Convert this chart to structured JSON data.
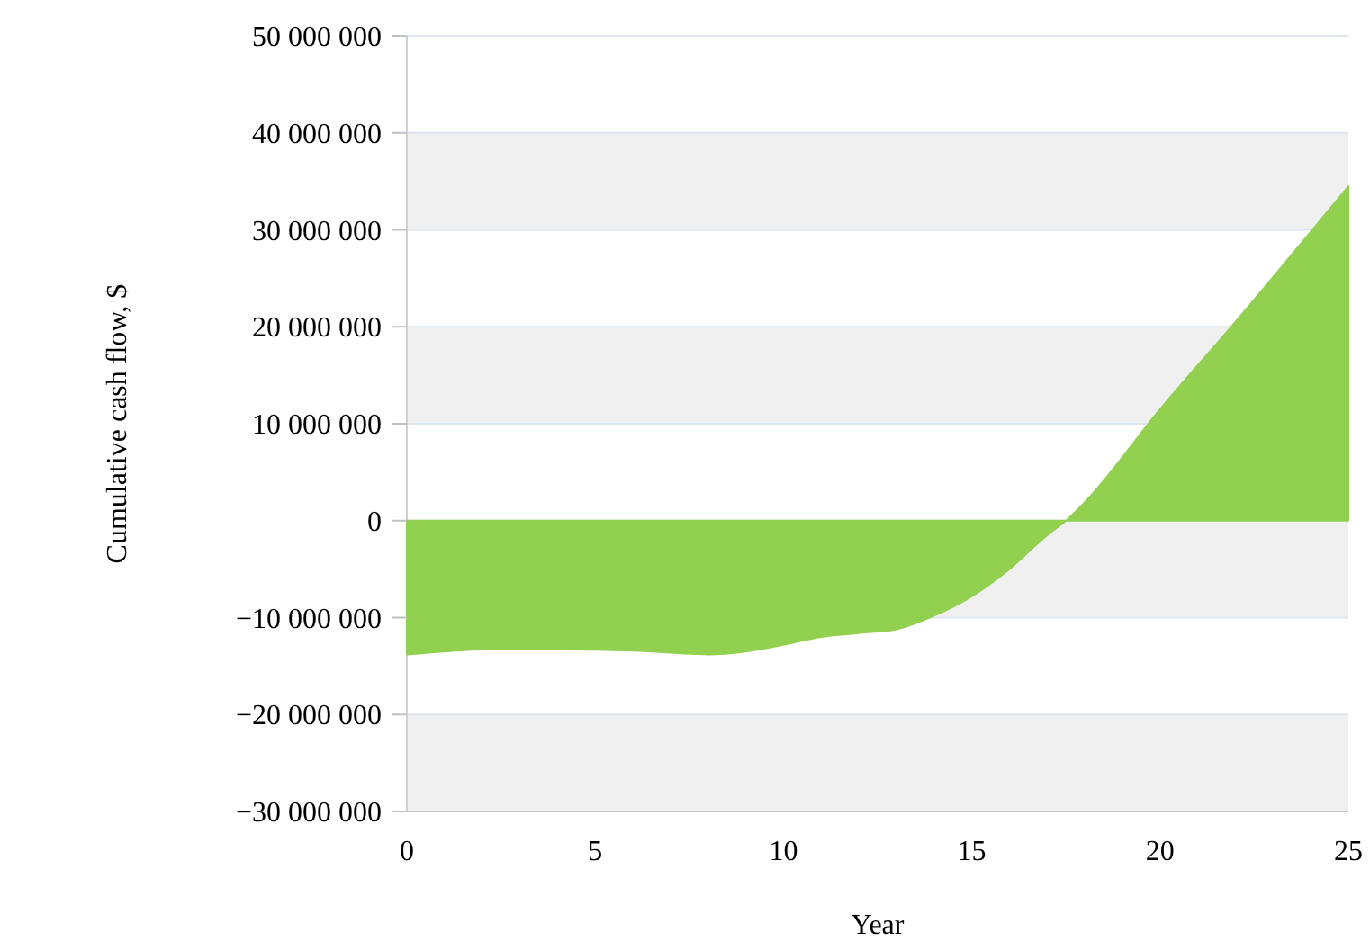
{
  "chart_data": {
    "type": "area",
    "xlabel": "Year",
    "ylabel": "Cumulative cash flow, $",
    "x": [
      0,
      1,
      2,
      4,
      6,
      8,
      9,
      10,
      11,
      12,
      13,
      14,
      15,
      16,
      17,
      17.5,
      18,
      20,
      22,
      25
    ],
    "series": [
      {
        "color": "#92d050",
        "values": [
          -13800000,
          -13500000,
          -13300000,
          -13300000,
          -13400000,
          -13800000,
          -13500000,
          -12800000,
          -12000000,
          -11600000,
          -11200000,
          -9800000,
          -7800000,
          -5000000,
          -1500000,
          0,
          1900000,
          11500000,
          20500000,
          34500000
        ]
      }
    ],
    "xlim": [
      0,
      25
    ],
    "xticks": [
      0,
      5,
      10,
      15,
      20,
      25
    ],
    "ylim": [
      -30000000,
      50000000
    ],
    "yticks": [
      {
        "value": -30000000,
        "label": "−30 000 000"
      },
      {
        "value": -20000000,
        "label": "−20 000 000"
      },
      {
        "value": -10000000,
        "label": "−10 000 000"
      },
      {
        "value": 0,
        "label": "0"
      },
      {
        "value": 10000000,
        "label": "10 000 000"
      },
      {
        "value": 20000000,
        "label": "20 000 000"
      },
      {
        "value": 30000000,
        "label": "30 000 000"
      },
      {
        "value": 40000000,
        "label": "40 000 000"
      },
      {
        "value": 50000000,
        "label": "50 000 000"
      }
    ],
    "grid": "y"
  }
}
